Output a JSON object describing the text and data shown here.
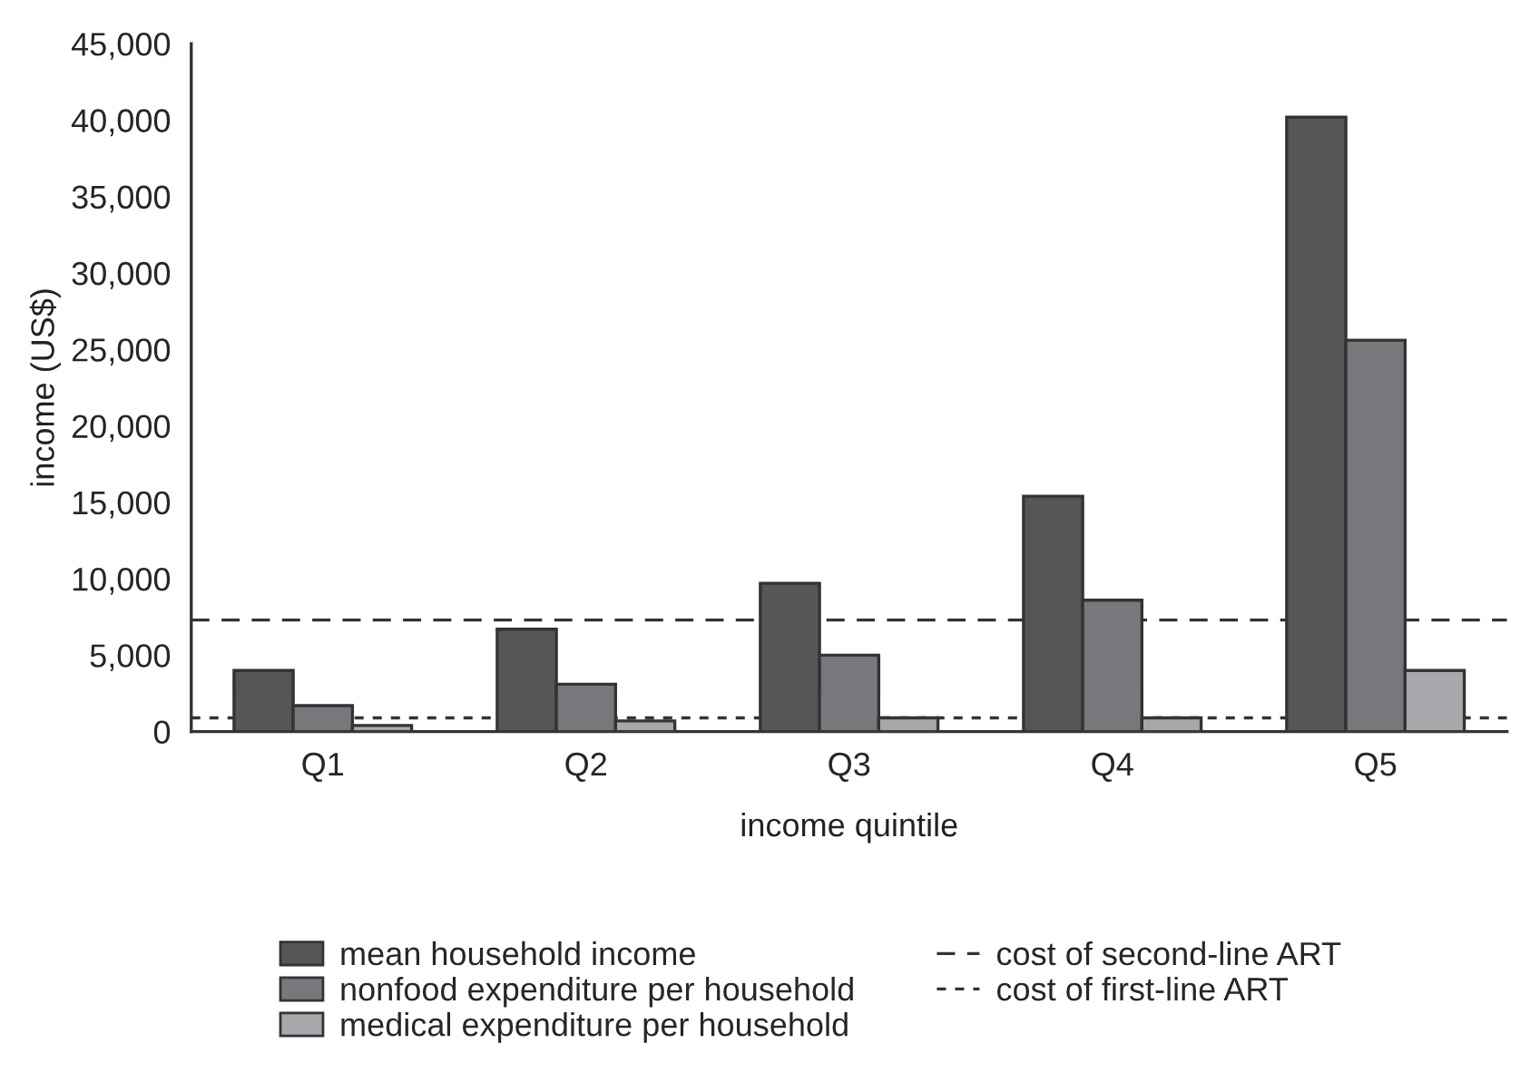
{
  "chart_data": {
    "type": "bar",
    "xlabel": "income quintile",
    "ylabel": "income (US$)",
    "categories": [
      "Q1",
      "Q2",
      "Q3",
      "Q4",
      "Q5"
    ],
    "series": [
      {
        "name": "mean household income",
        "color": "#555658",
        "values": [
          4000,
          6700,
          9700,
          15400,
          40200
        ]
      },
      {
        "name": "nonfood expenditure per household",
        "color": "#77787b",
        "values": [
          1700,
          3100,
          5000,
          8600,
          25600
        ]
      },
      {
        "name": "medical expenditure per household",
        "color": "#a7a8ab",
        "values": [
          400,
          700,
          900,
          900,
          4000
        ]
      }
    ],
    "ylim": [
      0,
      45000
    ],
    "yticks": [
      {
        "value": 0,
        "label": "0"
      },
      {
        "value": 5000,
        "label": "5,000"
      },
      {
        "value": 10000,
        "label": "10,000"
      },
      {
        "value": 15000,
        "label": "15,000"
      },
      {
        "value": 20000,
        "label": "20,000"
      },
      {
        "value": 25000,
        "label": "25,000"
      },
      {
        "value": 30000,
        "label": "30,000"
      },
      {
        "value": 35000,
        "label": "35,000"
      },
      {
        "value": 40000,
        "label": "40,000"
      },
      {
        "value": 45000,
        "label": "45,000"
      }
    ],
    "ref_lines": [
      {
        "axis": "y",
        "value": 7300,
        "label": "cost of second-line ART",
        "color": "#333333",
        "line_style": "dashed"
      },
      {
        "axis": "y",
        "value": 900,
        "label": "cost of first-line ART",
        "color": "#333333",
        "line_style": "dotted"
      }
    ],
    "grid": false,
    "legend": "bottom"
  }
}
